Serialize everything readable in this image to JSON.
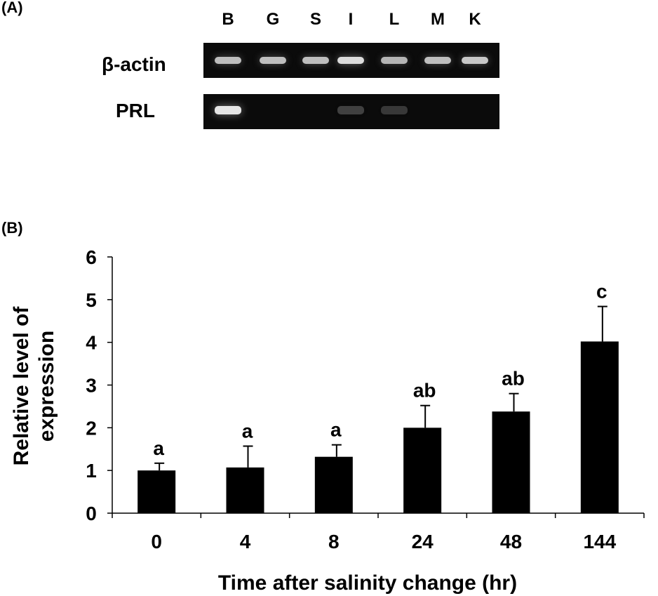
{
  "panel_a": {
    "label": "(A)",
    "lanes": [
      "B",
      "G",
      "S",
      "I",
      "L",
      "M",
      "K"
    ],
    "gels": [
      {
        "name": "β-actin",
        "band_intensity": [
          0.75,
          0.75,
          0.75,
          0.9,
          0.7,
          0.75,
          0.8
        ]
      },
      {
        "name": "PRL",
        "band_intensity": [
          0.95,
          0.0,
          0.0,
          0.12,
          0.08,
          0.0,
          0.0
        ]
      }
    ]
  },
  "panel_b": {
    "label": "(B)"
  },
  "chart_data": {
    "type": "bar",
    "categories": [
      "0",
      "4",
      "8",
      "24",
      "48",
      "144"
    ],
    "values": [
      1.0,
      1.07,
      1.32,
      2.0,
      2.38,
      4.02
    ],
    "errors": [
      0.17,
      0.5,
      0.28,
      0.52,
      0.42,
      0.82
    ],
    "significance_letters": [
      "a",
      "a",
      "a",
      "ab",
      "ab",
      "c"
    ],
    "xlabel": "Time after salinity change (hr)",
    "ylabel": "Relative level of expression",
    "ylabel_lines": [
      "Relative level of",
      "expression"
    ],
    "ylim": [
      0,
      6
    ],
    "yticks": [
      0,
      1,
      2,
      3,
      4,
      5,
      6
    ],
    "bar_color": "#000000",
    "grid": false
  }
}
